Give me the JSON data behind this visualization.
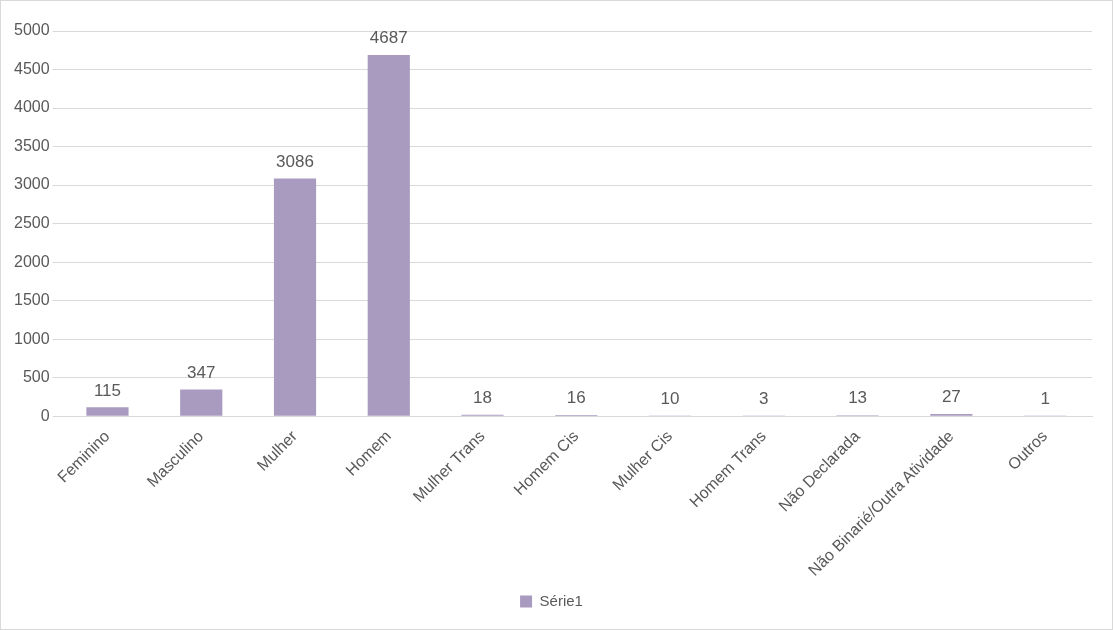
{
  "chart_data": {
    "type": "bar",
    "categories": [
      "Feminino",
      "Masculino",
      "Mulher",
      "Homem",
      "Mulher Trans",
      "Homem Cis",
      "Mulher Cis",
      "Homem Trans",
      "Não Declarada",
      "Não Binarié/Outra Atividade",
      "Outros"
    ],
    "series": [
      {
        "name": "Série1",
        "color": "#a99bc0",
        "values": [
          115,
          347,
          3086,
          4687,
          18,
          16,
          10,
          3,
          13,
          27,
          1
        ]
      }
    ],
    "ylim": [
      0,
      5000
    ],
    "yticks": [
      0,
      500,
      1000,
      1500,
      2000,
      2500,
      3000,
      3500,
      4000,
      4500,
      5000
    ],
    "grid": "y",
    "legend": "bottom",
    "data_labels": true
  }
}
